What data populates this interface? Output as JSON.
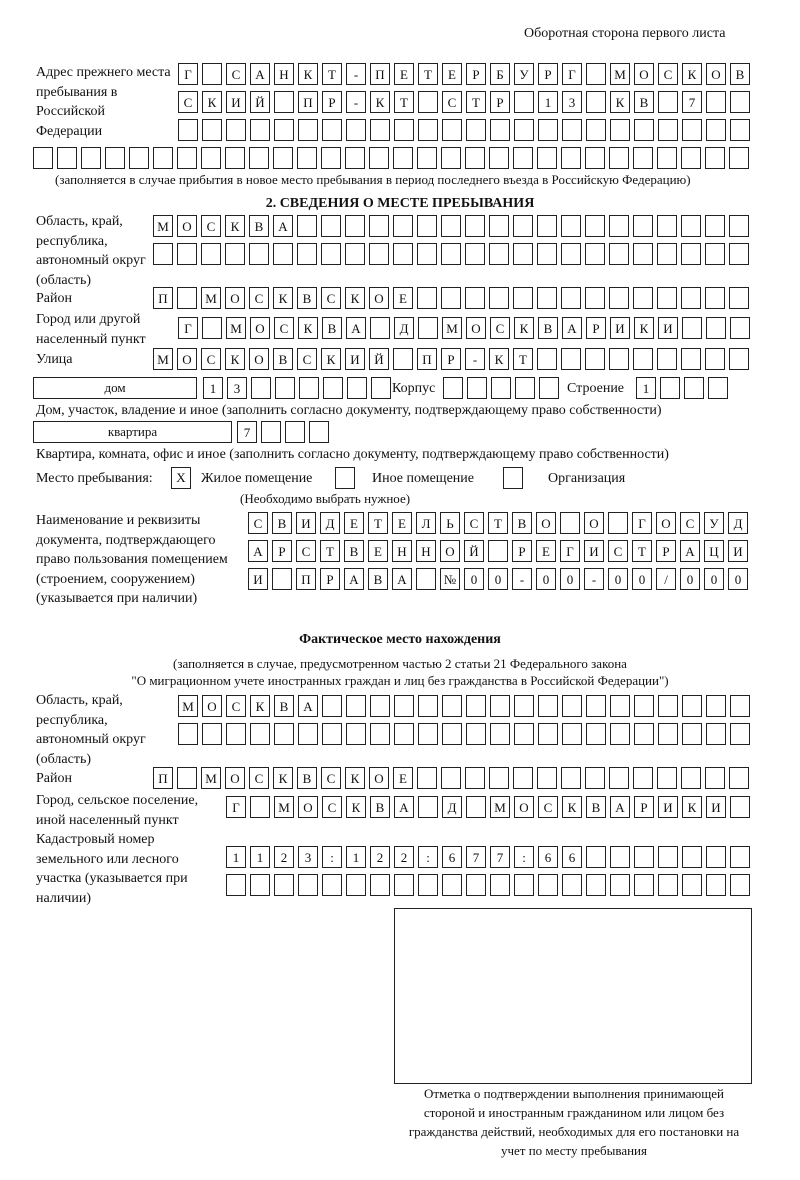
{
  "header": "Оборотная сторона первого листа",
  "prev_address": {
    "label": "Адрес прежнего места пребывания в Российской Федерации",
    "rows": [
      [
        "Г",
        "",
        "С",
        "А",
        "Н",
        "К",
        "Т",
        "-",
        "П",
        "Е",
        "Т",
        "Е",
        "Р",
        "Б",
        "У",
        "Р",
        "Г",
        "",
        "М",
        "О",
        "С",
        "К",
        "О",
        "В"
      ],
      [
        "С",
        "К",
        "И",
        "Й",
        "",
        "П",
        "Р",
        "-",
        "К",
        "Т",
        "",
        "С",
        "Т",
        "Р",
        "",
        "1",
        "3",
        "",
        "К",
        "В",
        "",
        "7",
        "",
        ""
      ],
      [
        "",
        "",
        "",
        "",
        "",
        "",
        "",
        "",
        "",
        "",
        "",
        "",
        "",
        "",
        "",
        "",
        "",
        "",
        "",
        "",
        "",
        "",
        "",
        ""
      ],
      [
        "",
        "",
        "",
        "",
        "",
        "",
        "",
        "",
        "",
        "",
        "",
        "",
        "",
        "",
        "",
        "",
        "",
        "",
        "",
        "",
        "",
        "",
        "",
        "",
        "",
        "",
        "",
        "",
        "",
        ""
      ]
    ],
    "note": "(заполняется в случае прибытия в новое место пребывания в период последнего въезда в Российскую Федерацию)"
  },
  "section2": {
    "title": "2. СВЕДЕНИЯ О МЕСТЕ ПРЕБЫВАНИЯ",
    "region_label": "Область, край, республика, автономный округ (область)",
    "region_rows": [
      [
        "М",
        "О",
        "С",
        "К",
        "В",
        "А",
        "",
        "",
        "",
        "",
        "",
        "",
        "",
        "",
        "",
        "",
        "",
        "",
        "",
        "",
        "",
        "",
        "",
        "",
        ""
      ],
      [
        "",
        "",
        "",
        "",
        "",
        "",
        "",
        "",
        "",
        "",
        "",
        "",
        "",
        "",
        "",
        "",
        "",
        "",
        "",
        "",
        "",
        "",
        "",
        "",
        ""
      ]
    ],
    "district_label": "Район",
    "district": [
      "П",
      "",
      "М",
      "О",
      "С",
      "К",
      "В",
      "С",
      "К",
      "О",
      "Е",
      "",
      "",
      "",
      "",
      "",
      "",
      "",
      "",
      "",
      "",
      "",
      "",
      "",
      ""
    ],
    "city_label": "Город или другой населенный пункт",
    "city": [
      "Г",
      "",
      "М",
      "О",
      "С",
      "К",
      "В",
      "А",
      "",
      "Д",
      "",
      "М",
      "О",
      "С",
      "К",
      "В",
      "А",
      "Р",
      "И",
      "К",
      "И",
      "",
      "",
      ""
    ],
    "street_label": "Улица",
    "street": [
      "М",
      "О",
      "С",
      "К",
      "О",
      "В",
      "С",
      "К",
      "И",
      "Й",
      "",
      "П",
      "Р",
      "-",
      "К",
      "Т",
      "",
      "",
      "",
      "",
      "",
      "",
      "",
      "",
      ""
    ],
    "house_type": "дом",
    "house": [
      "1",
      "3",
      "",
      "",
      "",
      "",
      "",
      ""
    ],
    "korpus_label": "Корпус",
    "korpus": [
      "",
      "",
      "",
      "",
      ""
    ],
    "building_label": "Строение",
    "building": [
      "1",
      "",
      "",
      ""
    ],
    "house_note": "Дом, участок, владение и иное (заполнить согласно документу, подтверждающему право собственности)",
    "flat_type": "квартира",
    "flat": [
      "7",
      "",
      "",
      ""
    ],
    "flat_note": "Квартира, комната, офис и иное (заполнить согласно документу, подтверждающему право собственности)",
    "stay_label": "Место пребывания:",
    "stay_options": [
      {
        "mark": "X",
        "label": "Жилое помещение"
      },
      {
        "mark": "",
        "label": "Иное помещение"
      },
      {
        "mark": "",
        "label": "Организация"
      }
    ],
    "stay_note": "(Необходимо выбрать нужное)",
    "doc_label": "Наименование и реквизиты документа, подтверждающего право пользования помещением (строением, сооружением) (указывается при наличии)",
    "doc_rows": [
      [
        "С",
        "В",
        "И",
        "Д",
        "Е",
        "Т",
        "Е",
        "Л",
        "Ь",
        "С",
        "Т",
        "В",
        "О",
        "",
        "О",
        "",
        "Г",
        "О",
        "С",
        "У",
        "Д"
      ],
      [
        "А",
        "Р",
        "С",
        "Т",
        "В",
        "Е",
        "Н",
        "Н",
        "О",
        "Й",
        "",
        "Р",
        "Е",
        "Г",
        "И",
        "С",
        "Т",
        "Р",
        "А",
        "Ц",
        "И"
      ],
      [
        "И",
        "",
        "П",
        "Р",
        "А",
        "В",
        "А",
        "",
        "№",
        "0",
        "0",
        "-",
        "0",
        "0",
        "-",
        "0",
        "0",
        "/",
        "0",
        "0",
        "0"
      ]
    ]
  },
  "actual": {
    "title": "Фактическое место нахождения",
    "note1": "(заполняется в случае, предусмотренном частью 2 статьи 21 Федерального закона",
    "note2": "\"О миграционном учете иностранных граждан и лиц без гражданства в Российской Федерации\")",
    "region_label": "Область, край, республика, автономный округ (область)",
    "region_rows": [
      [
        "М",
        "О",
        "С",
        "К",
        "В",
        "А",
        "",
        "",
        "",
        "",
        "",
        "",
        "",
        "",
        "",
        "",
        "",
        "",
        "",
        "",
        "",
        "",
        "",
        ""
      ],
      [
        "",
        "",
        "",
        "",
        "",
        "",
        "",
        "",
        "",
        "",
        "",
        "",
        "",
        "",
        "",
        "",
        "",
        "",
        "",
        "",
        "",
        "",
        "",
        ""
      ]
    ],
    "district_label": "Район",
    "district": [
      "П",
      "",
      "М",
      "О",
      "С",
      "К",
      "В",
      "С",
      "К",
      "О",
      "Е",
      "",
      "",
      "",
      "",
      "",
      "",
      "",
      "",
      "",
      "",
      "",
      "",
      "",
      ""
    ],
    "city_label": "Город, сельское поселение, иной населенный пункт",
    "city": [
      "Г",
      "",
      "М",
      "О",
      "С",
      "К",
      "В",
      "А",
      "",
      "Д",
      "",
      "М",
      "О",
      "С",
      "К",
      "В",
      "А",
      "Р",
      "И",
      "К",
      "И",
      ""
    ],
    "cadastre_label": "Кадастровый номер земельного или лесного участка (указывается при наличии)",
    "cadastre_rows": [
      [
        "1",
        "1",
        "2",
        "3",
        ":",
        "1",
        "2",
        "2",
        ":",
        "6",
        "7",
        "7",
        ":",
        "6",
        "6",
        "",
        "",
        "",
        "",
        "",
        "",
        ""
      ],
      [
        "",
        "",
        "",
        "",
        "",
        "",
        "",
        "",
        "",
        "",
        "",
        "",
        "",
        "",
        "",
        "",
        "",
        "",
        "",
        "",
        "",
        ""
      ]
    ]
  },
  "confirmation_caption": "Отметка о подтверждении выполнения принимающей стороной и иностранным гражданином или лицом без гражданства действий, необходимых для его постановки на учет по месту пребывания"
}
